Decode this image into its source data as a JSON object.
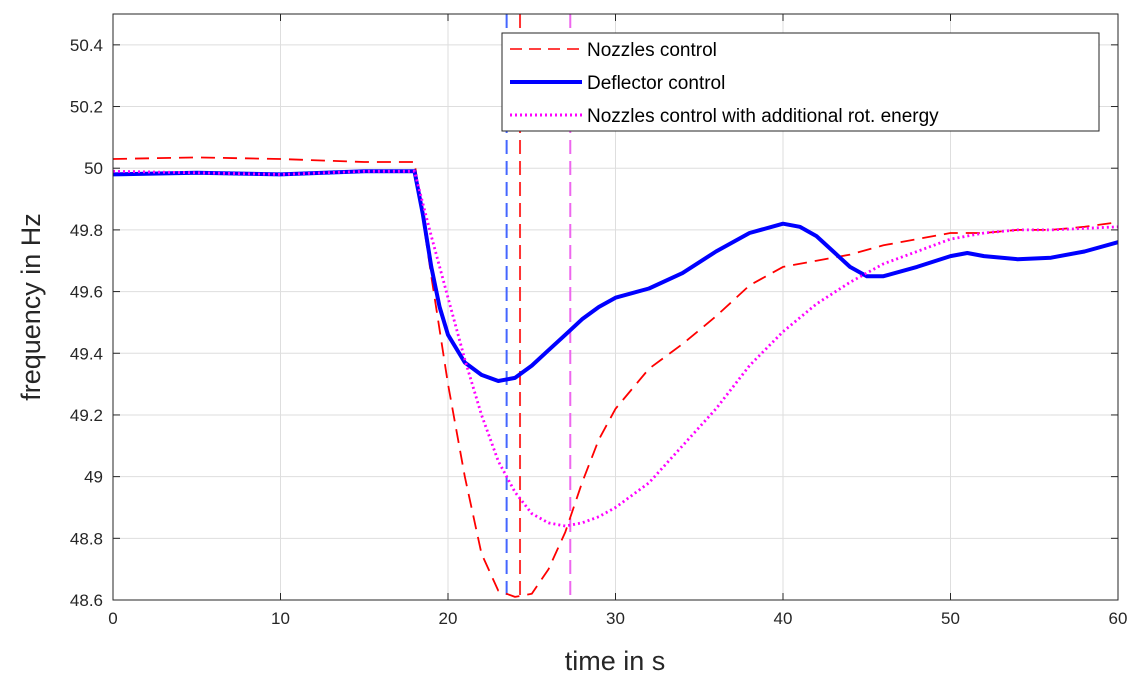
{
  "chart_data": {
    "type": "line",
    "title": "",
    "xlabel": "time in s",
    "ylabel": "frequency in Hz",
    "xlim": [
      0,
      60
    ],
    "ylim": [
      48.6,
      50.5
    ],
    "xticks": [
      "0",
      "10",
      "20",
      "30",
      "40",
      "50",
      "60"
    ],
    "yticks": [
      "48.6",
      "48.8",
      "49",
      "49.2",
      "49.4",
      "49.6",
      "49.8",
      "50",
      "50.2",
      "50.4"
    ],
    "grid": true,
    "legend": "top-right",
    "series": [
      {
        "name": "Nozzles control",
        "color": "#ff0000",
        "style": "dashed",
        "x": [
          0,
          5,
          10,
          15,
          18,
          19,
          20,
          21,
          22,
          23,
          24,
          25,
          26,
          27,
          28,
          29,
          30,
          32,
          34,
          36,
          38,
          40,
          42,
          44,
          46,
          48,
          50,
          52,
          54,
          56,
          58,
          60
        ],
        "y": [
          50.03,
          50.035,
          50.03,
          50.02,
          50.02,
          49.65,
          49.3,
          49.0,
          48.75,
          48.63,
          48.61,
          48.62,
          48.7,
          48.82,
          48.98,
          49.12,
          49.22,
          49.35,
          49.43,
          49.52,
          49.62,
          49.68,
          49.7,
          49.72,
          49.75,
          49.77,
          49.79,
          49.79,
          49.8,
          49.8,
          49.81,
          49.825
        ]
      },
      {
        "name": "Deflector control",
        "color": "#0000ff",
        "style": "solid",
        "x": [
          0,
          5,
          10,
          15,
          18,
          18.5,
          19,
          19.5,
          20,
          21,
          22,
          23,
          24,
          25,
          26,
          27,
          28,
          29,
          30,
          32,
          34,
          36,
          38,
          40,
          41,
          42,
          43,
          44,
          45,
          46,
          48,
          50,
          51,
          52,
          54,
          56,
          58,
          60
        ],
        "y": [
          49.98,
          49.985,
          49.98,
          49.99,
          49.99,
          49.85,
          49.68,
          49.55,
          49.46,
          49.37,
          49.33,
          49.31,
          49.32,
          49.36,
          49.41,
          49.46,
          49.51,
          49.55,
          49.58,
          49.61,
          49.66,
          49.73,
          49.79,
          49.82,
          49.81,
          49.78,
          49.73,
          49.68,
          49.65,
          49.65,
          49.68,
          49.715,
          49.725,
          49.715,
          49.705,
          49.71,
          49.73,
          49.76
        ]
      },
      {
        "name": "Nozzles control with additional rot. energy",
        "color": "#ff00ff",
        "style": "dotted",
        "x": [
          0,
          5,
          10,
          15,
          18,
          19,
          20,
          21,
          22,
          23,
          24,
          25,
          26,
          27,
          28,
          29,
          30,
          32,
          34,
          36,
          38,
          40,
          42,
          44,
          46,
          48,
          50,
          52,
          54,
          56,
          58,
          60
        ],
        "y": [
          49.99,
          49.985,
          49.98,
          49.99,
          49.99,
          49.78,
          49.58,
          49.38,
          49.2,
          49.05,
          48.95,
          48.88,
          48.85,
          48.84,
          48.85,
          48.87,
          48.9,
          48.98,
          49.1,
          49.22,
          49.36,
          49.47,
          49.56,
          49.63,
          49.69,
          49.73,
          49.77,
          49.79,
          49.8,
          49.8,
          49.805,
          49.81
        ]
      }
    ],
    "vertical_markers": [
      {
        "x": 23.5,
        "color": "#4466ff"
      },
      {
        "x": 24.3,
        "color": "#ff3333"
      },
      {
        "x": 27.3,
        "color": "#ee66ee"
      }
    ]
  }
}
